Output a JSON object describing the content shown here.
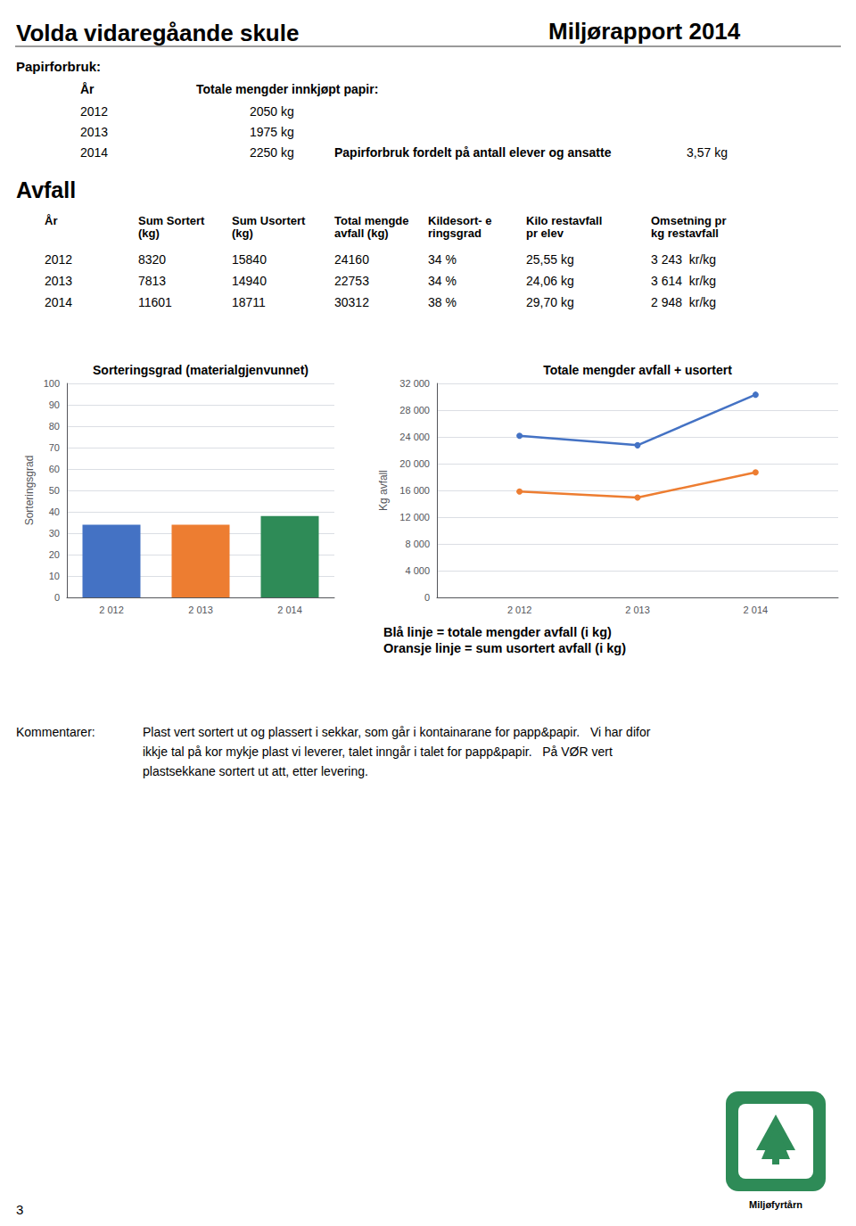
{
  "title": "Volda vidaregåande skule",
  "subtitle": "Miljørapport 2014",
  "tables": [
    {
      "title": "Papirforbruk:",
      "columns": [
        "År",
        "Totale mengder innkjøpt papir:"
      ],
      "rows": [
        [
          "2012",
          "2050 kg"
        ],
        [
          "2013",
          "1975 kg"
        ],
        [
          "2014",
          "2250 kg"
        ]
      ]
    },
    {
      "title": "Avfall",
      "columns": [
        "År",
        "Sum Sortert\n(kg)",
        "Sum Usortert\n(kg)",
        "Total mengde\navfall (kg)",
        "Kildesort- e\nringsgrad",
        "Kilo restavfall\npr elev",
        "Omsetning pr\nkg restavfall"
      ],
      "rows": [
        [
          "2012",
          "8320",
          "15840",
          "24160",
          "34 %",
          "25,55 kg",
          "3 243  kr/kg"
        ],
        [
          "2013",
          "7813",
          "14940",
          "22753",
          "34 %",
          "24,06 kg",
          "3 614  kr/kg"
        ],
        [
          "2014",
          "11601",
          "18711",
          "30312",
          "38 %",
          "29,70 kg",
          "2 948  kr/kg"
        ]
      ]
    }
  ],
  "annotations": [
    "Papirforbruk fordelt på antall elever og ansatte",
    "3,57 kg",
    "Blå linje = totale mengder avfall (i kg)",
    "Oransje linje = sum usortert avfall (i kg)",
    "Kommentarer:",
    "Plast vert sortert ut og plassert i sekkar, som går i kontainarane for papp&papir.   Vi har difor\nikkje tal på kor mykje plast vi leverer, talet inngår i talet for papp&papir.   På VØR vert\nplastsekkane sortert ut att, etter levering.",
    "3",
    "Miljøfyrtårn"
  ],
  "chart_data": [
    {
      "type": "bar",
      "title": "Sorteringsgrad (materialgjenvunnet)",
      "categories": [
        "2 012",
        "2 013",
        "2 014"
      ],
      "values": [
        34,
        34,
        38
      ],
      "colors": [
        "#4472C4",
        "#ED7D31",
        "#2E8B57"
      ],
      "ylabel": "Sorteringsgrad",
      "ylim": [
        0,
        100
      ],
      "yticks": [
        0,
        10,
        20,
        30,
        40,
        50,
        60,
        70,
        80,
        90,
        100
      ],
      "grid": true
    },
    {
      "type": "line",
      "title": "Totale mengder avfall + usortert",
      "x": [
        2012,
        2013,
        2014
      ],
      "series": [
        {
          "color": "#4472C4",
          "marker": "circle",
          "values": [
            24160,
            22753,
            30312
          ]
        },
        {
          "color": "#ED7D31",
          "marker": "circle",
          "values": [
            15840,
            14940,
            18711
          ]
        }
      ],
      "ylabel": "Kg avfall",
      "xlim": [
        2011.3,
        2014.7
      ],
      "xticks": [
        {
          "value": 2012,
          "label": "2 012"
        },
        {
          "value": 2013,
          "label": "2 013"
        },
        {
          "value": 2014,
          "label": "2 014"
        }
      ],
      "ylim": [
        0,
        32000
      ],
      "yticks": [
        0,
        {
          "value": 4000,
          "label": "4 000"
        },
        {
          "value": 8000,
          "label": "8 000"
        },
        {
          "value": 12000,
          "label": "12 000"
        },
        {
          "value": 16000,
          "label": "16 000"
        },
        {
          "value": 20000,
          "label": "20 000"
        },
        {
          "value": 24000,
          "label": "24 000"
        },
        {
          "value": 28000,
          "label": "28 000"
        },
        {
          "value": 32000,
          "label": "32 000"
        }
      ],
      "grid": true
    }
  ]
}
